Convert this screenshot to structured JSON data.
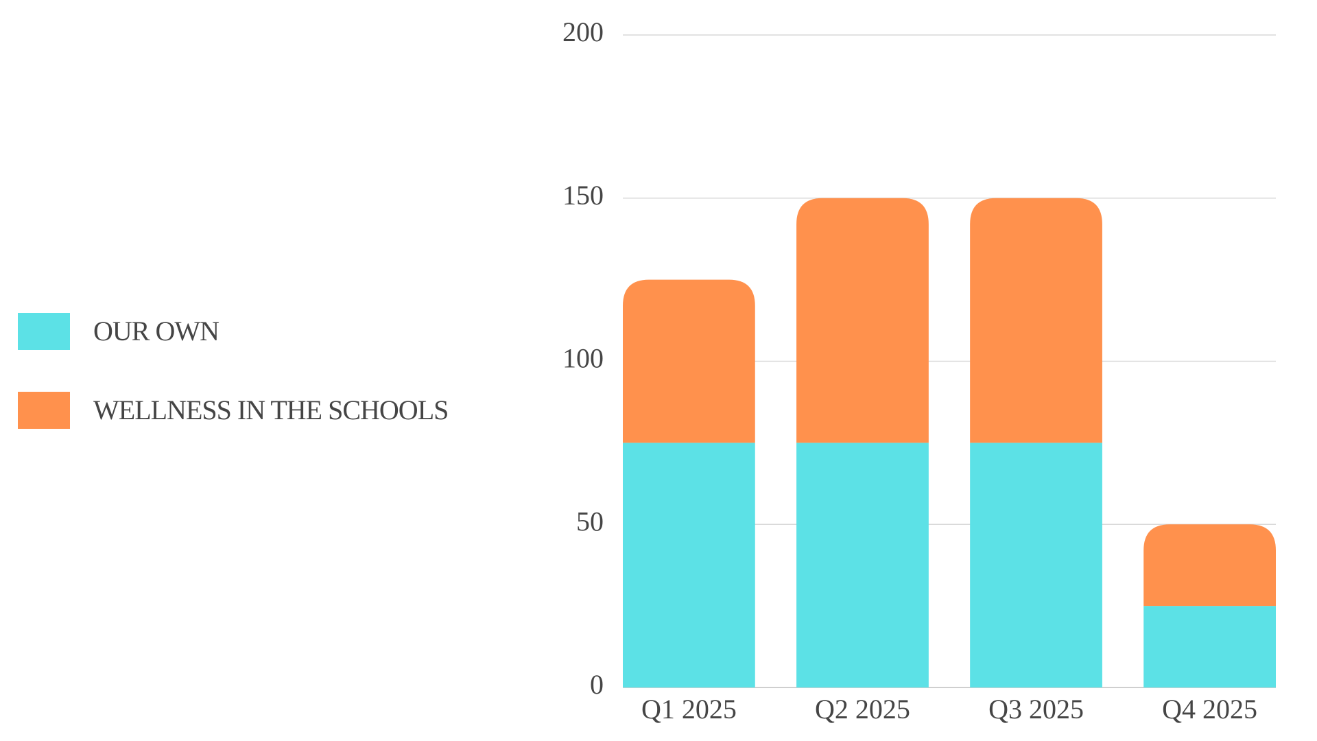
{
  "chart_data": {
    "type": "stacked-bar",
    "categories": [
      "Q1 2025",
      "Q2 2025",
      "Q3 2025",
      "Q4 2025"
    ],
    "series": [
      {
        "name": "OUR OWN",
        "color": "#5ce1e6",
        "values": [
          75,
          75,
          75,
          25
        ]
      },
      {
        "name": "WELLNESS IN THE SCHOOLS",
        "color": "#ff914d",
        "values": [
          50,
          75,
          75,
          25
        ]
      }
    ],
    "ylim": [
      0,
      200
    ],
    "yticks": [
      0,
      50,
      100,
      150,
      200
    ],
    "grid": true,
    "legend": "left"
  }
}
